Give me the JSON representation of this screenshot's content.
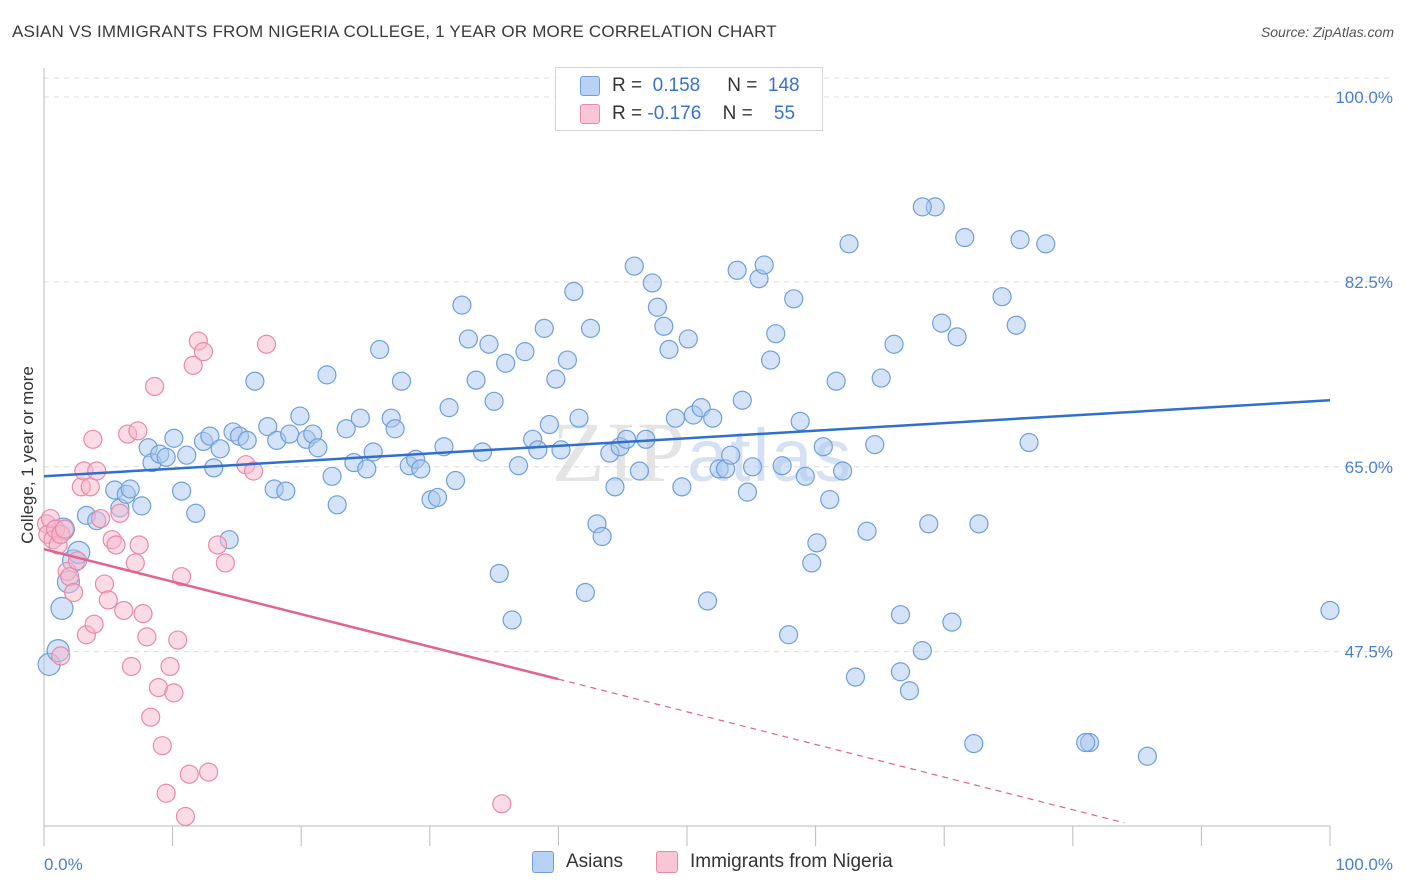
{
  "header": {
    "title": "ASIAN VS IMMIGRANTS FROM NIGERIA COLLEGE, 1 YEAR OR MORE CORRELATION CHART",
    "source": "Source: ZipAtlas.com"
  },
  "watermark": {
    "zip": "ZIP",
    "atlas": "atlas"
  },
  "legend": {
    "rows": [
      {
        "r_label": "R =",
        "r_value": "0.158",
        "n_label": "N =",
        "n_value": "148"
      },
      {
        "r_label": "R =",
        "r_value": "-0.176",
        "n_label": "N =",
        "n_value": "55"
      }
    ]
  },
  "bottom_legend": {
    "asians": "Asians",
    "nigeria": "Immigrants from Nigeria"
  },
  "colors": {
    "asian_fill": "#a9c8f0",
    "asian_stroke": "#6f9fde",
    "asian_line": "#2f6fcd",
    "nigeria_fill": "#f7b8cb",
    "nigeria_stroke": "#e98aa8",
    "nigeria_line": "#e0648f",
    "tick_text": "#4a7fd0"
  },
  "chart_data": {
    "type": "scatter",
    "title": "ASIAN VS IMMIGRANTS FROM NIGERIA COLLEGE, 1 YEAR OR MORE CORRELATION CHART",
    "xlabel": "",
    "ylabel": "College, 1 year or more",
    "xlim": [
      0,
      100
    ],
    "ylim": [
      31,
      101.8
    ],
    "x_tick_labels": [
      "0.0%",
      "100.0%"
    ],
    "y_ticks": [
      {
        "value": 47.5,
        "label": "47.5%"
      },
      {
        "value": 65.0,
        "label": "65.0%"
      },
      {
        "value": 82.5,
        "label": "82.5%"
      },
      {
        "value": 100.0,
        "label": "100.0%"
      }
    ],
    "grid": "horizontal dashed",
    "legend_position": "top-center",
    "series": [
      {
        "name": "Asians",
        "r": 0.158,
        "n": 148,
        "trend": {
          "x": [
            0,
            100
          ],
          "y": [
            64.1,
            71.3
          ]
        },
        "points": [
          [
            0.4,
            46.3
          ],
          [
            1.1,
            47.6
          ],
          [
            1.4,
            51.6
          ],
          [
            1.5,
            59.1
          ],
          [
            1.9,
            54.1
          ],
          [
            2.3,
            56.1
          ],
          [
            2.7,
            56.9
          ],
          [
            3.3,
            60.4
          ],
          [
            4.1,
            59.9
          ],
          [
            5.5,
            62.8
          ],
          [
            5.9,
            61.1
          ],
          [
            6.4,
            62.4
          ],
          [
            6.7,
            62.9
          ],
          [
            7.6,
            61.3
          ],
          [
            8.1,
            66.8
          ],
          [
            8.4,
            65.4
          ],
          [
            9.0,
            66.2
          ],
          [
            9.5,
            65.9
          ],
          [
            10.1,
            67.7
          ],
          [
            10.7,
            62.7
          ],
          [
            11.1,
            66.1
          ],
          [
            11.8,
            60.6
          ],
          [
            12.4,
            67.4
          ],
          [
            12.9,
            67.9
          ],
          [
            13.2,
            64.9
          ],
          [
            13.7,
            66.7
          ],
          [
            14.4,
            58.1
          ],
          [
            14.7,
            68.3
          ],
          [
            15.2,
            67.9
          ],
          [
            15.8,
            67.5
          ],
          [
            16.4,
            73.1
          ],
          [
            17.4,
            68.8
          ],
          [
            17.9,
            62.9
          ],
          [
            18.1,
            67.5
          ],
          [
            18.8,
            62.7
          ],
          [
            19.1,
            68.1
          ],
          [
            19.9,
            69.8
          ],
          [
            20.4,
            67.6
          ],
          [
            20.9,
            68.1
          ],
          [
            21.3,
            66.8
          ],
          [
            22.0,
            73.7
          ],
          [
            22.4,
            64.1
          ],
          [
            22.8,
            61.4
          ],
          [
            23.5,
            68.6
          ],
          [
            24.1,
            65.4
          ],
          [
            24.6,
            69.6
          ],
          [
            25.1,
            64.8
          ],
          [
            25.6,
            66.4
          ],
          [
            26.1,
            76.1
          ],
          [
            27.0,
            69.6
          ],
          [
            27.3,
            68.6
          ],
          [
            27.8,
            73.1
          ],
          [
            28.4,
            65.1
          ],
          [
            28.9,
            65.7
          ],
          [
            29.3,
            64.8
          ],
          [
            30.1,
            61.9
          ],
          [
            30.6,
            62.1
          ],
          [
            31.1,
            66.9
          ],
          [
            31.5,
            70.6
          ],
          [
            32.0,
            63.7
          ],
          [
            32.5,
            80.3
          ],
          [
            33.0,
            77.1
          ],
          [
            33.6,
            73.2
          ],
          [
            34.1,
            66.4
          ],
          [
            34.6,
            76.6
          ],
          [
            35.0,
            71.2
          ],
          [
            35.4,
            54.9
          ],
          [
            35.9,
            74.8
          ],
          [
            36.4,
            50.5
          ],
          [
            36.9,
            65.1
          ],
          [
            37.4,
            75.9
          ],
          [
            38.0,
            67.6
          ],
          [
            38.4,
            66.6
          ],
          [
            38.9,
            78.1
          ],
          [
            39.3,
            69.0
          ],
          [
            39.8,
            73.3
          ],
          [
            40.2,
            66.6
          ],
          [
            40.7,
            75.1
          ],
          [
            41.2,
            81.6
          ],
          [
            41.6,
            69.6
          ],
          [
            42.1,
            53.1
          ],
          [
            42.5,
            78.1
          ],
          [
            43.0,
            59.6
          ],
          [
            43.4,
            58.4
          ],
          [
            44.0,
            66.3
          ],
          [
            44.4,
            63.1
          ],
          [
            44.8,
            66.9
          ],
          [
            45.3,
            67.6
          ],
          [
            45.9,
            84.0
          ],
          [
            46.3,
            64.6
          ],
          [
            46.8,
            67.6
          ],
          [
            47.3,
            82.4
          ],
          [
            47.7,
            80.1
          ],
          [
            48.2,
            78.3
          ],
          [
            48.6,
            76.1
          ],
          [
            49.1,
            69.6
          ],
          [
            49.6,
            63.1
          ],
          [
            50.1,
            77.1
          ],
          [
            50.5,
            69.9
          ],
          [
            51.1,
            70.6
          ],
          [
            51.6,
            52.3
          ],
          [
            52.0,
            69.6
          ],
          [
            52.5,
            64.8
          ],
          [
            53.0,
            64.8
          ],
          [
            53.4,
            66.1
          ],
          [
            53.9,
            83.6
          ],
          [
            54.3,
            71.3
          ],
          [
            54.7,
            62.6
          ],
          [
            55.1,
            65.0
          ],
          [
            55.6,
            82.8
          ],
          [
            56.0,
            84.1
          ],
          [
            56.5,
            75.1
          ],
          [
            56.9,
            77.6
          ],
          [
            57.4,
            65.1
          ],
          [
            57.9,
            49.1
          ],
          [
            58.3,
            80.9
          ],
          [
            58.8,
            69.3
          ],
          [
            59.2,
            64.1
          ],
          [
            59.7,
            55.9
          ],
          [
            60.1,
            57.8
          ],
          [
            60.6,
            66.9
          ],
          [
            61.1,
            61.9
          ],
          [
            61.6,
            73.1
          ],
          [
            62.1,
            64.6
          ],
          [
            62.6,
            86.1
          ],
          [
            63.1,
            45.1
          ],
          [
            64.0,
            58.9
          ],
          [
            64.6,
            67.1
          ],
          [
            65.1,
            73.4
          ],
          [
            66.1,
            76.6
          ],
          [
            66.6,
            51.0
          ],
          [
            67.3,
            43.8
          ],
          [
            68.3,
            47.6
          ],
          [
            68.8,
            59.6
          ],
          [
            69.3,
            89.6
          ],
          [
            69.8,
            78.6
          ],
          [
            70.6,
            50.3
          ],
          [
            71.0,
            77.3
          ],
          [
            71.6,
            86.7
          ],
          [
            72.3,
            38.8
          ],
          [
            72.7,
            59.6
          ],
          [
            74.5,
            81.1
          ],
          [
            75.6,
            78.4
          ],
          [
            75.9,
            86.5
          ],
          [
            76.6,
            67.3
          ],
          [
            77.9,
            86.1
          ],
          [
            81.3,
            38.9
          ],
          [
            85.8,
            37.6
          ],
          [
            100.0,
            51.4
          ],
          [
            68.3,
            89.6
          ],
          [
            81.0,
            38.9
          ],
          [
            66.6,
            45.6
          ]
        ]
      },
      {
        "name": "Immigrants from Nigeria",
        "r": -0.176,
        "n": 55,
        "trend": {
          "x": [
            0,
            40.0
          ],
          "y": [
            57.2,
            44.9
          ]
        },
        "trend_dashed": {
          "x": [
            40.0,
            84.0
          ],
          "y": [
            44.9,
            31.3
          ]
        },
        "points": [
          [
            0.2,
            59.6
          ],
          [
            0.3,
            58.6
          ],
          [
            0.5,
            60.1
          ],
          [
            0.7,
            58.1
          ],
          [
            0.9,
            59.1
          ],
          [
            1.1,
            57.6
          ],
          [
            1.3,
            58.6
          ],
          [
            1.6,
            59.1
          ],
          [
            1.8,
            55.1
          ],
          [
            2.0,
            54.6
          ],
          [
            2.3,
            53.1
          ],
          [
            2.6,
            56.1
          ],
          [
            2.9,
            63.1
          ],
          [
            3.1,
            64.6
          ],
          [
            3.3,
            49.1
          ],
          [
            3.6,
            63.1
          ],
          [
            3.9,
            50.1
          ],
          [
            4.1,
            64.6
          ],
          [
            4.4,
            60.1
          ],
          [
            4.7,
            53.9
          ],
          [
            5.0,
            52.4
          ],
          [
            5.3,
            58.1
          ],
          [
            5.6,
            57.6
          ],
          [
            5.9,
            60.6
          ],
          [
            6.2,
            51.4
          ],
          [
            6.5,
            68.1
          ],
          [
            6.8,
            46.1
          ],
          [
            7.1,
            55.9
          ],
          [
            7.4,
            57.6
          ],
          [
            7.7,
            51.1
          ],
          [
            8.0,
            48.9
          ],
          [
            8.3,
            41.3
          ],
          [
            8.6,
            72.6
          ],
          [
            8.9,
            44.1
          ],
          [
            9.2,
            38.6
          ],
          [
            9.5,
            34.1
          ],
          [
            9.8,
            46.1
          ],
          [
            10.1,
            43.6
          ],
          [
            10.4,
            48.6
          ],
          [
            10.7,
            54.6
          ],
          [
            11.0,
            31.9
          ],
          [
            11.3,
            35.9
          ],
          [
            11.6,
            74.6
          ],
          [
            12.0,
            76.9
          ],
          [
            12.4,
            75.9
          ],
          [
            12.8,
            36.1
          ],
          [
            13.5,
            57.6
          ],
          [
            14.1,
            55.9
          ],
          [
            15.7,
            65.2
          ],
          [
            16.3,
            64.6
          ],
          [
            17.3,
            76.6
          ],
          [
            3.8,
            67.6
          ],
          [
            7.3,
            68.4
          ],
          [
            1.3,
            47.1
          ],
          [
            35.6,
            33.1
          ]
        ]
      }
    ]
  }
}
